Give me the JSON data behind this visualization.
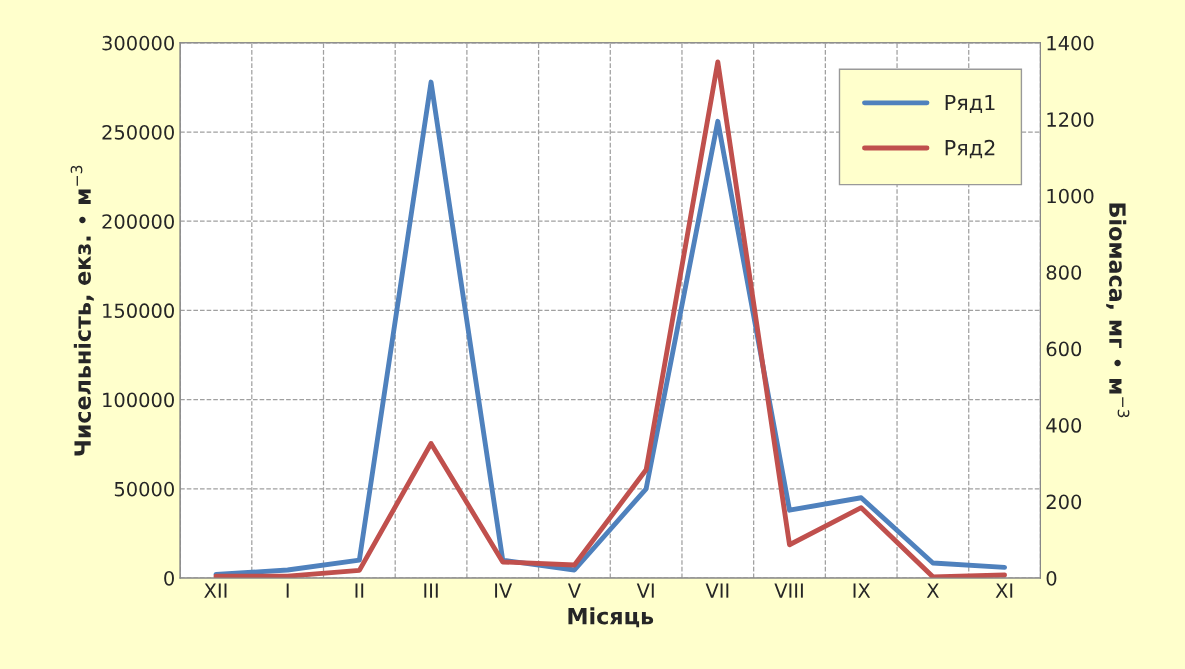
{
  "chart_data": {
    "type": "line",
    "xlabel": "Місяць",
    "ylabel": "Чисельність, екз. • м$^{−3}$",
    "y2label": "Біомаса, мг • м$^{−3}$",
    "categories": [
      "XII",
      "I",
      "II",
      "III",
      "IV",
      "V",
      "VI",
      "VII",
      "VIII",
      "IX",
      "X",
      "XI"
    ],
    "series": [
      {
        "name": "Ряд1",
        "color": "#4f81bd",
        "values": [
          2000,
          4500,
          10000,
          278000,
          10000,
          4500,
          50000,
          256000,
          38000,
          45000,
          8400,
          6000
        ]
      },
      {
        "name": "Ряд2",
        "color": "#c0504d",
        "axis": "y2",
        "values": [
          5,
          5,
          20,
          352,
          42,
          34,
          283,
          1350,
          87,
          184,
          3,
          8
        ]
      }
    ],
    "ylim": [
      0,
      300000
    ],
    "yticks": [
      0,
      50000,
      100000,
      150000,
      200000,
      250000,
      300000
    ],
    "y2lim": [
      0,
      1400
    ],
    "y2ticks": [
      0,
      200,
      400,
      600,
      800,
      1000,
      1200,
      1400
    ],
    "grid": true,
    "legend": "top right",
    "line_style": "solid",
    "marker": "none"
  }
}
